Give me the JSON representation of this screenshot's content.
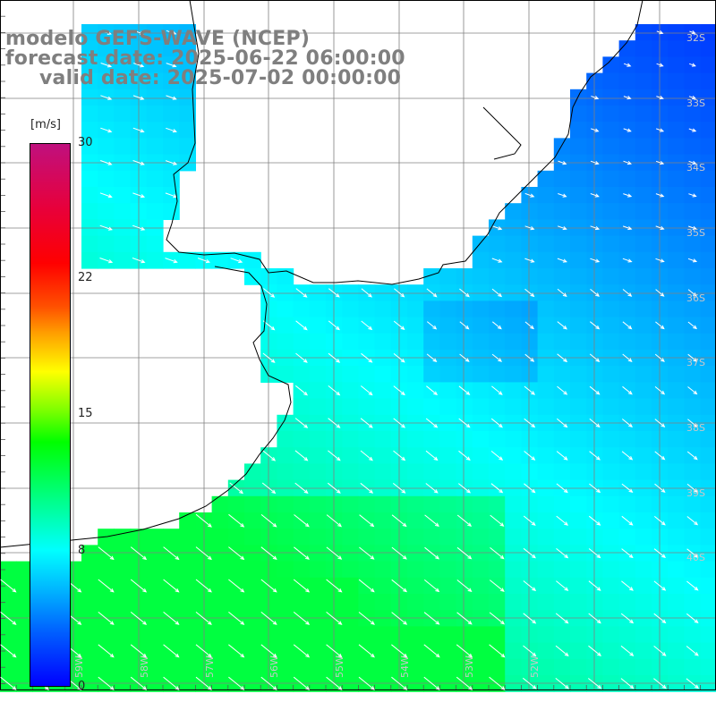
{
  "map": {
    "title": "modelo GEFS-WAVE (NCEP)",
    "forecast_date": "forecast date: 2025-06-22 06:00:00",
    "valid_date": "valid date: 2025-07-02 00:00:00"
  },
  "colorbar": {
    "unit": "[m/s]",
    "ticks": [
      "30",
      "22",
      "15",
      "8",
      "0"
    ],
    "tick_values": [
      30,
      22,
      15,
      8,
      0
    ]
  },
  "lat_labels": [
    "32S",
    "33S",
    "34S",
    "35S",
    "36S",
    "37S",
    "38S",
    "39S",
    "40S"
  ],
  "lon_labels": [
    "59W",
    "58W",
    "57W",
    "56W",
    "55W",
    "54W",
    "53W",
    "52W"
  ],
  "colors": {
    "land": "#ffffff",
    "coast": "#000000",
    "grid": "#808080",
    "title": "#7f7f7f",
    "vectors": "#ffffff"
  },
  "field": {
    "variable": "wind speed (m/s)",
    "range": [
      0,
      30
    ],
    "regions": [
      {
        "name": "northeast offshore",
        "speed_ms": 2
      },
      {
        "name": "central ocean",
        "speed_ms": 6
      },
      {
        "name": "Rio de la Plata estuary",
        "speed_ms": 8
      },
      {
        "name": "southwest shelf",
        "speed_ms": 11
      }
    ]
  }
}
